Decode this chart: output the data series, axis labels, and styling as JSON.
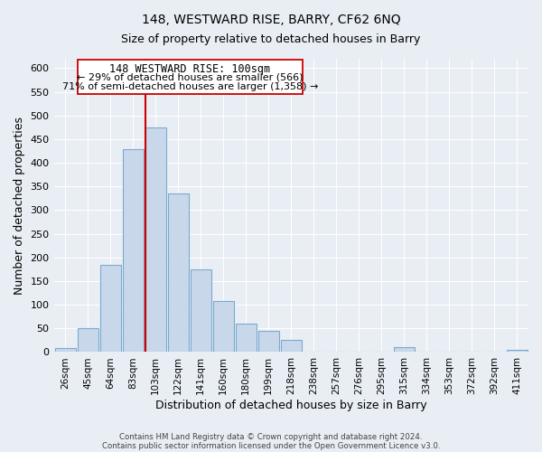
{
  "title1": "148, WESTWARD RISE, BARRY, CF62 6NQ",
  "title2": "Size of property relative to detached houses in Barry",
  "xlabel": "Distribution of detached houses by size in Barry",
  "ylabel": "Number of detached properties",
  "bar_labels": [
    "26sqm",
    "45sqm",
    "64sqm",
    "83sqm",
    "103sqm",
    "122sqm",
    "141sqm",
    "160sqm",
    "180sqm",
    "199sqm",
    "218sqm",
    "238sqm",
    "257sqm",
    "276sqm",
    "295sqm",
    "315sqm",
    "334sqm",
    "353sqm",
    "372sqm",
    "392sqm",
    "411sqm"
  ],
  "bar_heights": [
    8,
    50,
    185,
    428,
    474,
    335,
    174,
    107,
    60,
    44,
    25,
    0,
    0,
    0,
    0,
    10,
    0,
    0,
    0,
    0,
    5
  ],
  "bar_color": "#c8d8ea",
  "bar_edge_color": "#7baacf",
  "vline_color": "#cc0000",
  "vline_index": 4,
  "ylim": [
    0,
    620
  ],
  "yticks": [
    0,
    50,
    100,
    150,
    200,
    250,
    300,
    350,
    400,
    450,
    500,
    550,
    600
  ],
  "annotation_title": "148 WESTWARD RISE: 100sqm",
  "annotation_line1": "← 29% of detached houses are smaller (566)",
  "annotation_line2": "71% of semi-detached houses are larger (1,358) →",
  "footer1": "Contains HM Land Registry data © Crown copyright and database right 2024.",
  "footer2": "Contains public sector information licensed under the Open Government Licence v3.0.",
  "background_color": "#e8eef4",
  "plot_bg_color": "#e8eef4",
  "grid_color": "#ffffff",
  "title1_fontsize": 10,
  "title2_fontsize": 9,
  "ylabel_fontsize": 9,
  "xlabel_fontsize": 9
}
